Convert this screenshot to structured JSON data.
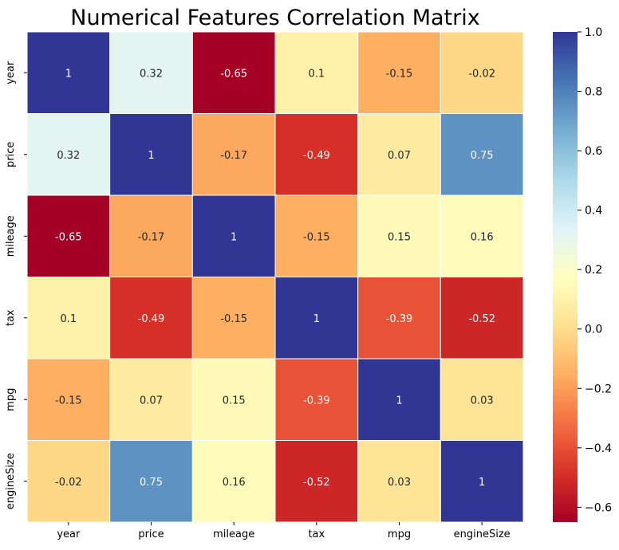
{
  "chart_data": {
    "type": "heatmap",
    "title": "Numerical Features Correlation Matrix",
    "x_categories": [
      "year",
      "price",
      "mileage",
      "tax",
      "mpg",
      "engineSize"
    ],
    "y_categories": [
      "year",
      "price",
      "mileage",
      "tax",
      "mpg",
      "engineSize"
    ],
    "values": [
      [
        1,
        0.32,
        -0.65,
        0.1,
        -0.15,
        -0.02
      ],
      [
        0.32,
        1,
        -0.17,
        -0.49,
        0.07,
        0.75
      ],
      [
        -0.65,
        -0.17,
        1,
        -0.15,
        0.15,
        0.16
      ],
      [
        0.1,
        -0.49,
        -0.15,
        1,
        -0.39,
        -0.52
      ],
      [
        -0.15,
        0.07,
        0.15,
        -0.39,
        1,
        0.03
      ],
      [
        -0.02,
        0.75,
        0.16,
        -0.52,
        0.03,
        1
      ]
    ],
    "colorscale": "RdYlBu",
    "vmin": -0.65,
    "vmax": 1,
    "colorbar_ticks": [
      -0.6,
      -0.4,
      -0.2,
      0.0,
      0.2,
      0.4,
      0.6,
      0.8,
      1.0
    ],
    "colorbar_tick_labels": [
      "−0.6",
      "−0.4",
      "−0.2",
      "0.0",
      "0.2",
      "0.4",
      "0.6",
      "0.8",
      "1.0"
    ],
    "grid": false,
    "legend": "colorbar-right"
  }
}
